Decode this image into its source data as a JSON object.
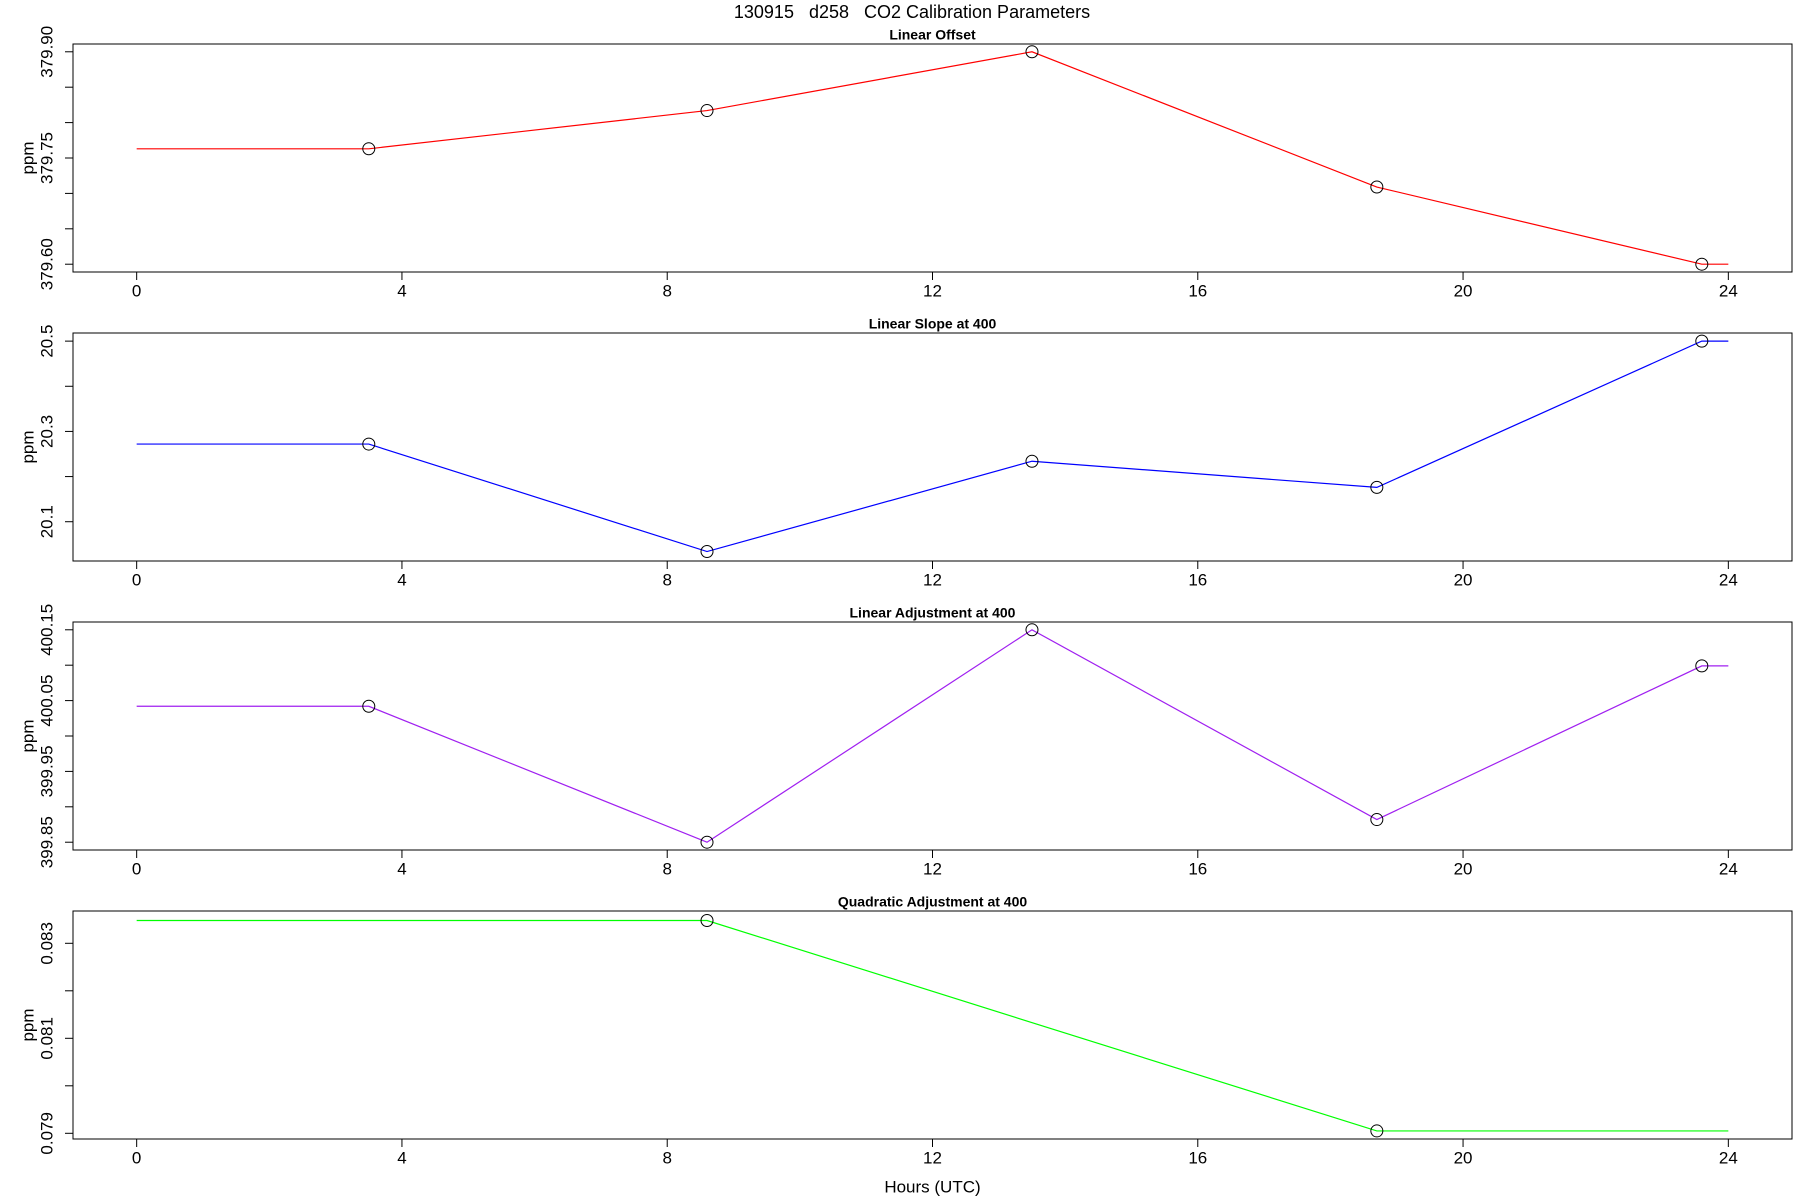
{
  "title": "130915   d258   CO2 Calibration Parameters",
  "chart_data": [
    {
      "type": "line",
      "title": "Linear Offset",
      "y_label": "ppm",
      "xlim": [
        -0.96,
        24.96
      ],
      "xticks": [
        0,
        4,
        8,
        12,
        16,
        20,
        24
      ],
      "ylim": [
        379.589,
        379.911
      ],
      "yticks": [
        {
          "value": 379.6,
          "label": "379.60"
        },
        379.75,
        {
          "value": 379.9,
          "label": "379.90"
        }
      ],
      "yminorticks": [
        379.65,
        379.7,
        379.8,
        379.85
      ],
      "marker_color": "#000000",
      "series": [
        {
          "color": "#ff0000",
          "x": [
            0,
            3.5,
            8.6,
            13.5,
            18.7,
            23.6,
            24
          ],
          "values": [
            379.763,
            379.763,
            379.817,
            379.9,
            379.709,
            379.6,
            379.6
          ],
          "markers": [
            false,
            true,
            true,
            true,
            true,
            true,
            false
          ]
        }
      ]
    },
    {
      "type": "line",
      "title": "Linear Slope at 400",
      "y_label": "ppm",
      "xlim": [
        -0.96,
        24.96
      ],
      "xticks": [
        0,
        4,
        8,
        12,
        16,
        20,
        24
      ],
      "ylim": [
        20.013,
        20.518
      ],
      "yticks": [
        20.1,
        20.3,
        20.5
      ],
      "yminorticks": [
        20.2,
        20.4
      ],
      "marker_color": "#000000",
      "series": [
        {
          "color": "#0000ff",
          "x": [
            0,
            3.5,
            8.6,
            13.5,
            18.7,
            23.6,
            24
          ],
          "values": [
            20.272,
            20.272,
            20.034,
            20.234,
            20.176,
            20.5,
            20.5
          ],
          "markers": [
            false,
            true,
            true,
            true,
            true,
            true,
            false
          ]
        }
      ]
    },
    {
      "type": "line",
      "title": "Linear Adjustment at 400",
      "y_label": "ppm",
      "xlim": [
        -0.96,
        24.96
      ],
      "xticks": [
        0,
        4,
        8,
        12,
        16,
        20,
        24
      ],
      "ylim": [
        399.839,
        400.161
      ],
      "yticks": [
        399.85,
        399.95,
        400.05,
        400.15
      ],
      "yminorticks": [
        399.9,
        400,
        400.1
      ],
      "marker_color": "#000000",
      "series": [
        {
          "color": "#a020f0",
          "x": [
            0,
            3.5,
            8.6,
            13.5,
            18.7,
            23.6,
            24
          ],
          "values": [
            400.042,
            400.042,
            399.85,
            400.15,
            399.882,
            400.099,
            400.099
          ],
          "markers": [
            false,
            true,
            true,
            true,
            true,
            true,
            false
          ]
        }
      ]
    },
    {
      "type": "line",
      "title": "Quadratic Adjustment at 400",
      "y_label": "ppm",
      "x_label": "Hours (UTC)",
      "xlim": [
        -0.96,
        24.96
      ],
      "xticks": [
        0,
        4,
        8,
        12,
        16,
        20,
        24
      ],
      "ylim": [
        0.07888,
        0.08368
      ],
      "yticks": [
        0.079,
        0.081,
        0.083
      ],
      "yminorticks": [
        0.08,
        0.082
      ],
      "marker_color": "#000000",
      "series": [
        {
          "color": "#00ff00",
          "x": [
            0,
            8.6,
            18.7,
            24
          ],
          "values": [
            0.08348,
            0.08348,
            0.07905,
            0.07905
          ],
          "markers": [
            false,
            true,
            true,
            false
          ]
        }
      ]
    }
  ]
}
